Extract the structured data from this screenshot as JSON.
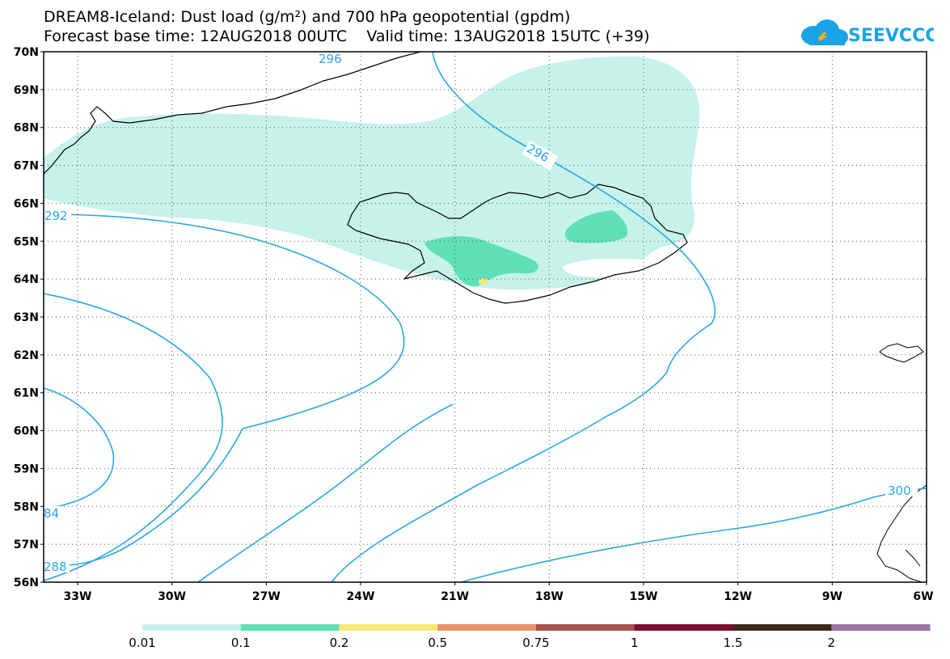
{
  "header": {
    "title_line1": "DREAM8-Iceland: Dust load (g/m²) and 700 hPa geopotential (gpdm)",
    "title_line2": "Forecast base time: 12AUG2018 00UTC    Valid time: 13AUG2018 15UTC (+39)"
  },
  "logo": {
    "text": "SEEVCCC",
    "color": "#1aa3e8"
  },
  "map": {
    "lat_labels": [
      "70N",
      "69N",
      "68N",
      "67N",
      "66N",
      "65N",
      "64N",
      "63N",
      "62N",
      "61N",
      "60N",
      "59N",
      "58N",
      "57N",
      "56N"
    ],
    "lon_labels": [
      "33W",
      "30W",
      "27W",
      "24W",
      "21W",
      "18W",
      "15W",
      "12W",
      "9W",
      "6W"
    ],
    "contour_labels": [
      {
        "text": "296"
      },
      {
        "text": "296"
      },
      {
        "text": "292"
      },
      {
        "text": "300"
      },
      {
        "text": "84"
      },
      {
        "text": "288"
      }
    ],
    "colors": {
      "contour": "#2aa7e0",
      "dust_low": "#c6f2ea",
      "dust_mid": "#5fe0b7",
      "dust_high": "#f7e87a",
      "coast": "#000000"
    }
  },
  "colorbar": {
    "labels": [
      "0.01",
      "0.1",
      "0.2",
      "0.5",
      "0.75",
      "1",
      "1.5",
      "2"
    ],
    "colors": [
      "#c6f2ea",
      "#5fe0b7",
      "#f7e87a",
      "#e8926b",
      "#a6524d",
      "#7a0f2e",
      "#3b2a15",
      "#9a74a8"
    ]
  }
}
